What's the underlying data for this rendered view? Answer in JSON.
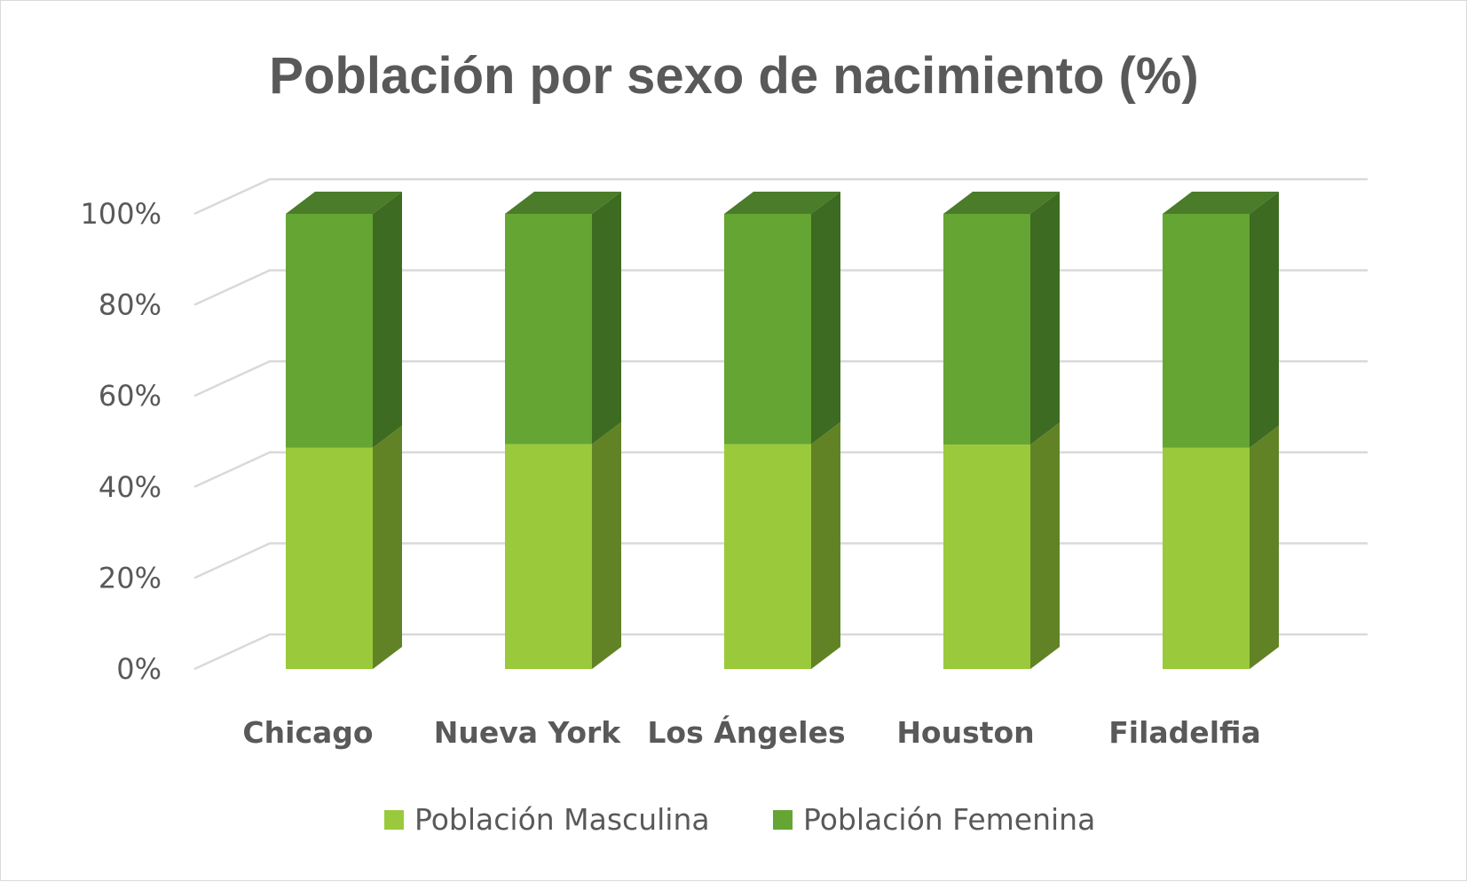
{
  "chart_data": {
    "type": "bar",
    "stacked": true,
    "percent_stacked": true,
    "three_d": true,
    "title": "Población por sexo de nacimiento (%)",
    "categories": [
      "Chicago",
      "Nueva York",
      "Los Ángeles",
      "Houston",
      "Filadelfia"
    ],
    "series": [
      {
        "name": "Población Masculina",
        "values": [
          48.6,
          49.4,
          49.4,
          49.3,
          48.6
        ],
        "color": "#9ACA3C"
      },
      {
        "name": "Población Femenina",
        "values": [
          51.4,
          50.6,
          50.6,
          50.7,
          51.4
        ],
        "color": "#65A534"
      }
    ],
    "yticks": [
      "0%",
      "20%",
      "40%",
      "60%",
      "80%",
      "100%"
    ],
    "ylim": [
      0,
      100
    ],
    "grid": true,
    "legend": "bottom",
    "colors": {
      "text": "#595959",
      "grid": "#d9d9d9",
      "male_side": "#628325",
      "male_top": "#7DA632",
      "female_side": "#3D6B21",
      "female_top": "#4A7C2A"
    }
  }
}
